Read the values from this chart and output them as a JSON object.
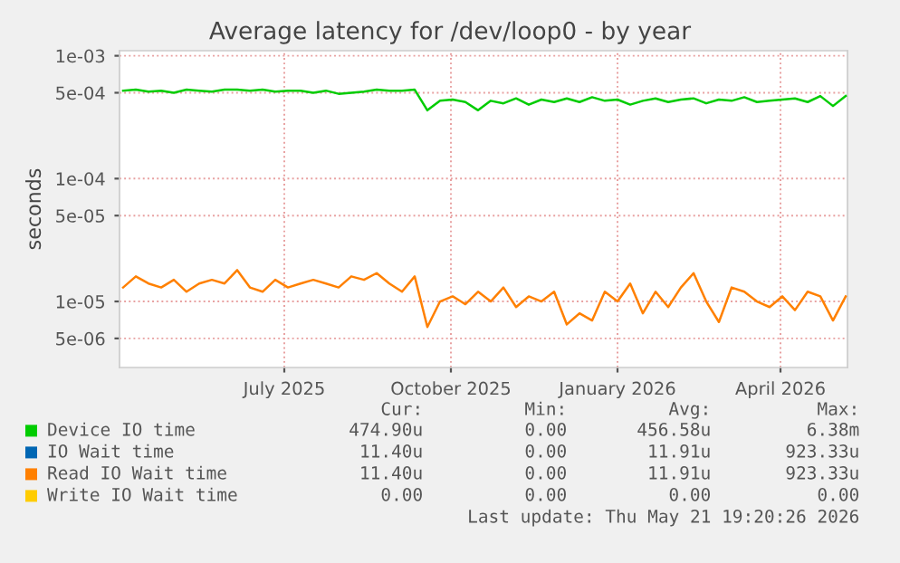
{
  "chart_data": {
    "type": "line",
    "title": "Average latency for /dev/loop0 - by year",
    "ylabel": "seconds",
    "log": "y",
    "grid": true,
    "legend": "bottom",
    "marker": "none",
    "line_style": "solid",
    "ylim": [
      2.9e-06,
      0.0011
    ],
    "yticks": [
      {
        "value": 0.001,
        "label": "1e-03"
      },
      {
        "value": 0.0005,
        "label": "5e-04"
      },
      {
        "value": 0.0001,
        "label": "1e-04"
      },
      {
        "value": 5e-05,
        "label": "5e-05"
      },
      {
        "value": 1e-05,
        "label": "1e-05"
      },
      {
        "value": 5e-06,
        "label": "5e-06"
      }
    ],
    "xlim": [
      "2025-04-01",
      "2026-05-08"
    ],
    "xticks": [
      {
        "value": "2025-07-01",
        "label": "July 2025"
      },
      {
        "value": "2025-10-01",
        "label": "October 2025"
      },
      {
        "value": "2026-01-01",
        "label": "January 2026"
      },
      {
        "value": "2026-04-01",
        "label": "April 2026"
      }
    ],
    "x": [
      "2025-04-03",
      "2025-04-10",
      "2025-04-17",
      "2025-04-24",
      "2025-05-01",
      "2025-05-08",
      "2025-05-15",
      "2025-05-22",
      "2025-05-29",
      "2025-06-05",
      "2025-06-12",
      "2025-06-19",
      "2025-06-26",
      "2025-07-03",
      "2025-07-10",
      "2025-07-17",
      "2025-07-24",
      "2025-07-31",
      "2025-08-07",
      "2025-08-14",
      "2025-08-21",
      "2025-08-28",
      "2025-09-04",
      "2025-09-11",
      "2025-09-18",
      "2025-09-25",
      "2025-10-02",
      "2025-10-09",
      "2025-10-16",
      "2025-10-23",
      "2025-10-30",
      "2025-11-06",
      "2025-11-13",
      "2025-11-20",
      "2025-11-27",
      "2025-12-04",
      "2025-12-11",
      "2025-12-18",
      "2025-12-25",
      "2026-01-01",
      "2026-01-08",
      "2026-01-15",
      "2026-01-22",
      "2026-01-29",
      "2026-02-05",
      "2026-02-12",
      "2026-02-19",
      "2026-02-26",
      "2026-03-05",
      "2026-03-12",
      "2026-03-19",
      "2026-03-26",
      "2026-04-02",
      "2026-04-09",
      "2026-04-16",
      "2026-04-23",
      "2026-04-30",
      "2026-05-07"
    ],
    "series": [
      {
        "name": "Device IO time",
        "color": "#00cc00",
        "values": [
          0.00052,
          0.00053,
          0.00051,
          0.00052,
          0.0005,
          0.00053,
          0.00052,
          0.00051,
          0.00053,
          0.00053,
          0.00052,
          0.00053,
          0.00051,
          0.00052,
          0.00052,
          0.0005,
          0.00052,
          0.00049,
          0.0005,
          0.00051,
          0.00053,
          0.00052,
          0.00052,
          0.00053,
          0.00036,
          0.00043,
          0.00044,
          0.00042,
          0.00036,
          0.00043,
          0.00041,
          0.00045,
          0.0004,
          0.00044,
          0.00042,
          0.00045,
          0.00042,
          0.00046,
          0.00043,
          0.00044,
          0.0004,
          0.00043,
          0.00045,
          0.00042,
          0.00044,
          0.00045,
          0.00041,
          0.00044,
          0.00043,
          0.00046,
          0.00042,
          0.00043,
          0.00044,
          0.00045,
          0.00042,
          0.00047,
          0.00039,
          0.00047
        ]
      },
      {
        "name": "IO Wait time",
        "color": "#0066b3",
        "values": [
          null,
          null,
          null,
          null,
          null,
          null,
          null,
          null,
          null,
          null,
          null,
          null,
          null,
          null,
          null,
          null,
          null,
          null,
          null,
          null,
          null,
          null,
          null,
          null,
          null,
          null,
          null,
          null,
          null,
          null,
          null,
          null,
          null,
          null,
          null,
          null,
          null,
          null,
          null,
          null,
          null,
          null,
          null,
          null,
          null,
          null,
          null,
          null,
          null,
          null,
          null,
          null,
          null,
          null,
          null,
          null,
          null,
          null
        ]
      },
      {
        "name": "Read IO Wait time",
        "color": "#ff8000",
        "values": [
          1.3e-05,
          1.6e-05,
          1.4e-05,
          1.3e-05,
          1.5e-05,
          1.2e-05,
          1.4e-05,
          1.5e-05,
          1.4e-05,
          1.8e-05,
          1.3e-05,
          1.2e-05,
          1.5e-05,
          1.3e-05,
          1.4e-05,
          1.5e-05,
          1.4e-05,
          1.3e-05,
          1.6e-05,
          1.5e-05,
          1.7e-05,
          1.4e-05,
          1.2e-05,
          1.6e-05,
          6.2e-06,
          1e-05,
          1.1e-05,
          9.5e-06,
          1.2e-05,
          1e-05,
          1.3e-05,
          9e-06,
          1.1e-05,
          1e-05,
          1.2e-05,
          6.5e-06,
          8e-06,
          7e-06,
          1.2e-05,
          1e-05,
          1.4e-05,
          8e-06,
          1.2e-05,
          9e-06,
          1.3e-05,
          1.7e-05,
          1e-05,
          6.8e-06,
          1.3e-05,
          1.2e-05,
          1e-05,
          9e-06,
          1.1e-05,
          8.5e-06,
          1.2e-05,
          1.1e-05,
          7e-06,
          1.1e-05
        ]
      },
      {
        "name": "Write IO Wait time",
        "color": "#ffcc00",
        "values": [
          null,
          null,
          null,
          null,
          null,
          null,
          null,
          null,
          null,
          null,
          null,
          null,
          null,
          null,
          null,
          null,
          null,
          null,
          null,
          null,
          null,
          null,
          null,
          null,
          null,
          null,
          null,
          null,
          null,
          null,
          null,
          null,
          null,
          null,
          null,
          null,
          null,
          null,
          null,
          null,
          null,
          null,
          null,
          null,
          null,
          null,
          null,
          null,
          null,
          null,
          null,
          null,
          null,
          null,
          null,
          null,
          null,
          null
        ]
      }
    ],
    "annotations": [
      "Cur:",
      "Min:",
      "Avg:",
      "Max:",
      "474.90u",
      "0.00",
      "456.58u",
      "6.38m",
      "11.40u",
      "0.00",
      "11.91u",
      "923.33u",
      "11.40u",
      "0.00",
      "11.91u",
      "923.33u",
      "0.00",
      "0.00",
      "0.00",
      "0.00",
      "Last update: Thu May 21 19:20:26 2026"
    ]
  }
}
